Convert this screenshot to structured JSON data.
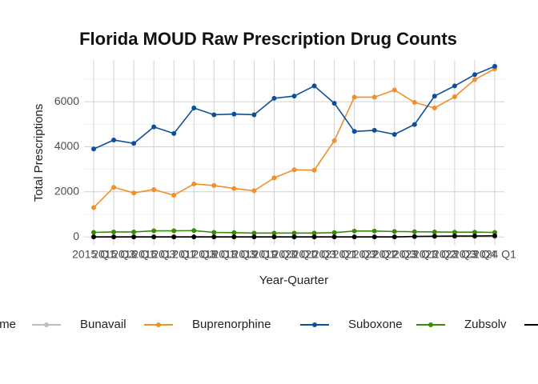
{
  "chart_data": {
    "type": "line",
    "title": "Florida MOUD Raw Prescription Drug Counts",
    "x_label": "Year-Quarter",
    "y_label": "Total Prescriptions",
    "legend_title": "me",
    "legend": "bottom",
    "grid": true,
    "categories": [
      "2015 Q1",
      "2015 Q3",
      "2016 Q1",
      "2016 Q3",
      "2017 Q1",
      "2017 Q3",
      "2018 Q1",
      "2018 Q3",
      "2019 Q1",
      "2019 Q3",
      "2020 Q1",
      "2020 Q3",
      "2021 Q1",
      "2021 Q3",
      "2022 Q1",
      "2022 Q3",
      "2023 Q1",
      "2023 Q2",
      "2023 Q3",
      "2023 Q4",
      "2024 Q1"
    ],
    "ylim": [
      -350,
      7850
    ],
    "yticks": [
      0,
      2000,
      4000,
      6000
    ],
    "series": [
      {
        "name": "Bunavail",
        "color": "#bdbdbd",
        "values": [
          10,
          10,
          10,
          10,
          10,
          10,
          10,
          10,
          10,
          10,
          10,
          10,
          10,
          10,
          10,
          10,
          10,
          10,
          10,
          10,
          10
        ]
      },
      {
        "name": "Buprenorphine",
        "color": "#f28e2b",
        "values": [
          1300,
          2200,
          1950,
          2100,
          1850,
          2350,
          2280,
          2150,
          2050,
          2620,
          2980,
          2960,
          4270,
          6200,
          6200,
          6520,
          5970,
          5720,
          6220,
          6980,
          7460
        ]
      },
      {
        "name": "Suboxone",
        "color": "#0b4f9c",
        "values": [
          3900,
          4300,
          4150,
          4880,
          4590,
          5720,
          5420,
          5450,
          5420,
          6150,
          6250,
          6700,
          5930,
          4680,
          4730,
          4550,
          4990,
          6250,
          6700,
          7200,
          7570
        ]
      },
      {
        "name": "Zubsolv",
        "color": "#3a8a0a",
        "values": [
          200,
          220,
          220,
          270,
          270,
          280,
          200,
          190,
          170,
          170,
          170,
          170,
          190,
          260,
          260,
          240,
          230,
          220,
          210,
          210,
          200
        ]
      },
      {
        "color": "#000000",
        "values": [
          0,
          0,
          0,
          0,
          0,
          0,
          0,
          0,
          0,
          0,
          0,
          0,
          0,
          0,
          0,
          0,
          20,
          30,
          40,
          40,
          50
        ]
      }
    ]
  }
}
